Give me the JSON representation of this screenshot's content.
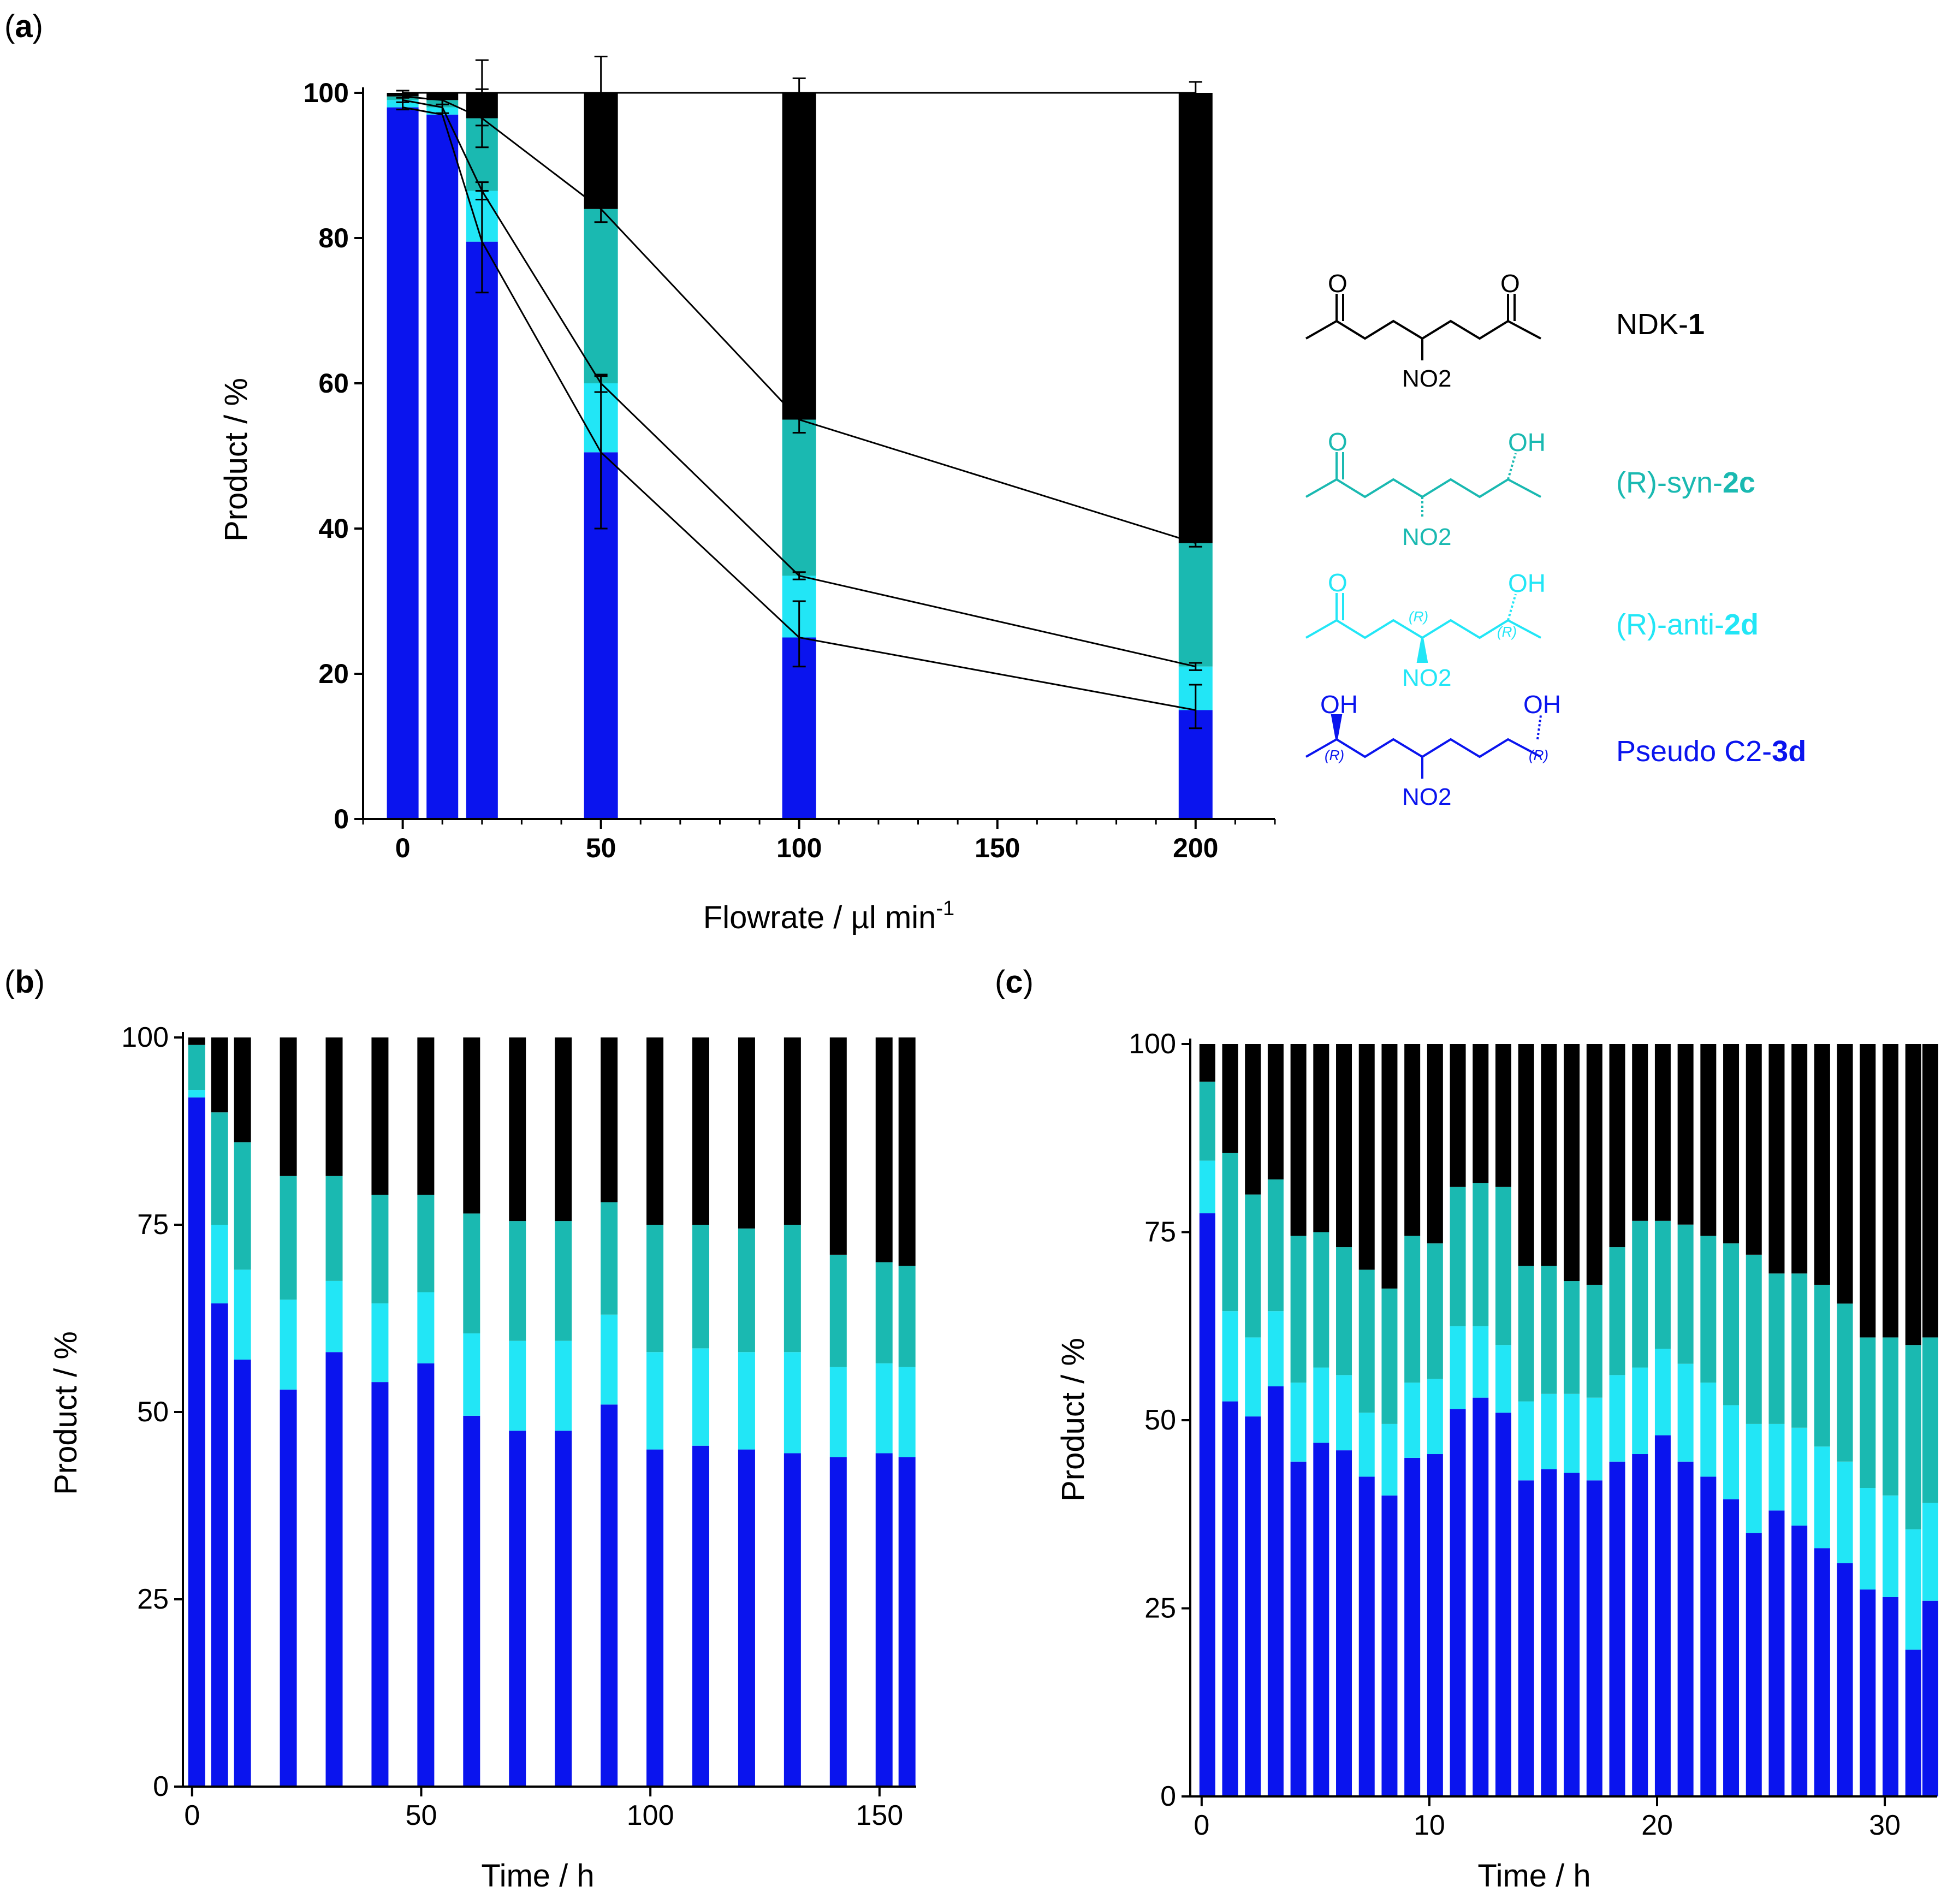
{
  "colors": {
    "ndk": "#000000",
    "syn": "#1ab9b1",
    "anti": "#22e6f6",
    "pseudo": "#0a14ee",
    "line": "#000000"
  },
  "panels": {
    "a": "a",
    "b": "b",
    "c": "c"
  },
  "legend": [
    {
      "id": "ndk",
      "pre": "NDK-",
      "bold": "1",
      "post": "",
      "color": "#000000",
      "struct": {
        "o1": "O",
        "o2": "O",
        "no2": "NO2"
      }
    },
    {
      "id": "syn",
      "pre": "(R)-syn-",
      "bold": "2c",
      "post": "",
      "color": "#1ab9b1",
      "struct": {
        "o1": "O",
        "oh": "OH",
        "no2": "NO2"
      }
    },
    {
      "id": "anti",
      "pre": "(R)-anti-",
      "bold": "2d",
      "post": "",
      "color": "#22e6f6",
      "struct": {
        "o1": "O",
        "oh": "OH",
        "r1": "(R)",
        "r2": "(R)",
        "no2": "NO2"
      }
    },
    {
      "id": "pseudo",
      "pre": "Pseudo C2-",
      "bold": "3d",
      "post": "",
      "color": "#0a14ee",
      "struct": {
        "oh1": "OH",
        "oh2": "OH",
        "r1": "(R)",
        "r2": "(R)",
        "no2": "NO2"
      }
    }
  ],
  "chart_data": [
    {
      "id": "a",
      "type": "bar",
      "stacked": true,
      "xlabel": "Flowrate / µl min-1",
      "ylabel": "Product / %",
      "xlim": [
        -10,
        220
      ],
      "ylim": [
        0,
        100
      ],
      "xticks": [
        0,
        50,
        100,
        150,
        200
      ],
      "yticks": [
        0,
        20,
        40,
        60,
        80,
        100
      ],
      "x": [
        0,
        10,
        20,
        50,
        100,
        200
      ],
      "series": [
        {
          "name": "Pseudo C2-3d",
          "values": [
            98,
            97,
            79.5,
            50.5,
            25,
            15
          ]
        },
        {
          "name": "(R)-anti-2d",
          "values": [
            1,
            1,
            7,
            9.5,
            8.5,
            6
          ]
        },
        {
          "name": "(R)-syn-2c",
          "values": [
            0.5,
            1,
            10,
            24,
            21.5,
            17
          ]
        },
        {
          "name": "NDK-1",
          "values": [
            0.5,
            1,
            3.5,
            16,
            45,
            62
          ]
        }
      ],
      "error_bars": [
        {
          "x": 0,
          "y": 99.5,
          "err": 0.8
        },
        {
          "x": 0,
          "y": 98.5,
          "err": 0.8
        },
        {
          "x": 10,
          "y": 99.2,
          "err": 0.8
        },
        {
          "x": 10,
          "y": 98.2,
          "err": 1
        },
        {
          "x": 20,
          "y": 100,
          "err": 4.5
        },
        {
          "x": 20,
          "y": 96.5,
          "err": 4
        },
        {
          "x": 20,
          "y": 86.5,
          "err": 1.2
        },
        {
          "x": 20,
          "y": 79.5,
          "err": 7
        },
        {
          "x": 50,
          "y": 100,
          "err": 5
        },
        {
          "x": 50,
          "y": 84,
          "err": 1.8
        },
        {
          "x": 50,
          "y": 60,
          "err": 1.2
        },
        {
          "x": 50,
          "y": 50.5,
          "err": 10.5
        },
        {
          "x": 100,
          "y": 100,
          "err": 2
        },
        {
          "x": 100,
          "y": 55,
          "err": 1.8
        },
        {
          "x": 100,
          "y": 33.5,
          "err": 0.5
        },
        {
          "x": 100,
          "y": 25.5,
          "err": 4.5
        },
        {
          "x": 200,
          "y": 100,
          "err": 1.5
        },
        {
          "x": 200,
          "y": 38,
          "err": 0.5
        },
        {
          "x": 200,
          "y": 21,
          "err": 0.5
        },
        {
          "x": 200,
          "y": 15.5,
          "err": 3
        }
      ]
    },
    {
      "id": "b",
      "type": "bar",
      "stacked": true,
      "xlabel": "Time / h",
      "ylabel": "Product / %",
      "xlim": [
        -2,
        158
      ],
      "ylim": [
        0,
        100
      ],
      "xticks": [
        0,
        50,
        100,
        150
      ],
      "yticks": [
        0,
        25,
        50,
        75,
        100
      ],
      "x": [
        1,
        6,
        11,
        21,
        31,
        41,
        51,
        61,
        71,
        81,
        91,
        101,
        111,
        121,
        131,
        141,
        151,
        156
      ],
      "series": [
        {
          "name": "Pseudo C2-3d",
          "values": [
            92,
            64.5,
            57,
            53,
            58,
            54,
            56.5,
            49.5,
            47.5,
            47.5,
            51,
            45,
            45.5,
            45,
            44.5,
            44,
            44.5,
            44
          ]
        },
        {
          "name": "(R)-anti-2d",
          "values": [
            1,
            10.5,
            12,
            12,
            9.5,
            10.5,
            9.5,
            11,
            12,
            12,
            12,
            13,
            13,
            13,
            13.5,
            12,
            12,
            12
          ]
        },
        {
          "name": "(R)-syn-2c",
          "values": [
            6,
            15,
            17,
            16.5,
            14,
            14.5,
            13,
            16,
            16,
            16,
            15,
            17,
            16.5,
            16.5,
            17,
            15,
            13.5,
            13.5
          ]
        },
        {
          "name": "NDK-1",
          "values": [
            1,
            10,
            14,
            18.5,
            18.5,
            21,
            21,
            23.5,
            24.5,
            24.5,
            22,
            25,
            25,
            25.5,
            25,
            29,
            30,
            30.5
          ]
        }
      ]
    },
    {
      "id": "c",
      "type": "bar",
      "stacked": true,
      "xlabel": "Time / h",
      "ylabel": "Product / %",
      "xlim": [
        -0.5,
        32.3
      ],
      "ylim": [
        0,
        100
      ],
      "xticks": [
        0,
        10,
        20,
        30
      ],
      "yticks": [
        0,
        25,
        50,
        75,
        100
      ],
      "x": [
        0.25,
        1.25,
        2.25,
        3.25,
        4.25,
        5.25,
        6.25,
        7.25,
        8.25,
        9.25,
        10.25,
        11.25,
        12.25,
        13.25,
        14.25,
        15.25,
        16.25,
        17.25,
        18.25,
        19.25,
        20.25,
        21.25,
        22.25,
        23.25,
        24.25,
        25.25,
        26.25,
        27.25,
        28.25,
        29.25,
        30.25,
        31.25,
        32.0
      ],
      "series": [
        {
          "name": "Pseudo C2-3d",
          "values": [
            77.5,
            52.5,
            50.5,
            54.5,
            44.5,
            47,
            46,
            42.5,
            40,
            45,
            45.5,
            51.5,
            53,
            51,
            42,
            43.5,
            43,
            42,
            44.5,
            45.5,
            48,
            44.5,
            42.5,
            39.5,
            35,
            38,
            36,
            33,
            31,
            27.5,
            26.5,
            19.5,
            26
          ]
        },
        {
          "name": "(R)-anti-2d",
          "values": [
            7,
            12,
            10.5,
            10,
            10.5,
            10,
            10,
            8.5,
            9.5,
            10,
            10,
            11,
            9.5,
            9,
            10.5,
            10,
            10.5,
            11,
            11.5,
            11.5,
            11.5,
            13,
            12.5,
            12.5,
            14.5,
            11.5,
            13,
            13.5,
            13.5,
            13.5,
            13.5,
            16,
            13
          ]
        },
        {
          "name": "(R)-syn-2c",
          "values": [
            10.5,
            21,
            19,
            17.5,
            19.5,
            18,
            17,
            19,
            18,
            19.5,
            18,
            18.5,
            19,
            21,
            18,
            17,
            15,
            15,
            17,
            19.5,
            17,
            18.5,
            19.5,
            21.5,
            22.5,
            20,
            20.5,
            21.5,
            21,
            20,
            21,
            24.5,
            22
          ]
        },
        {
          "name": "NDK-1",
          "values": [
            5,
            14.5,
            20,
            18,
            25.5,
            25,
            27,
            30,
            32.5,
            25.5,
            26.5,
            19,
            18.5,
            19,
            29.5,
            29.5,
            31.5,
            32,
            27,
            23.5,
            23.5,
            24,
            25.5,
            26.5,
            28,
            30.5,
            30.5,
            32,
            34.5,
            39,
            39,
            40,
            39
          ]
        }
      ]
    }
  ]
}
